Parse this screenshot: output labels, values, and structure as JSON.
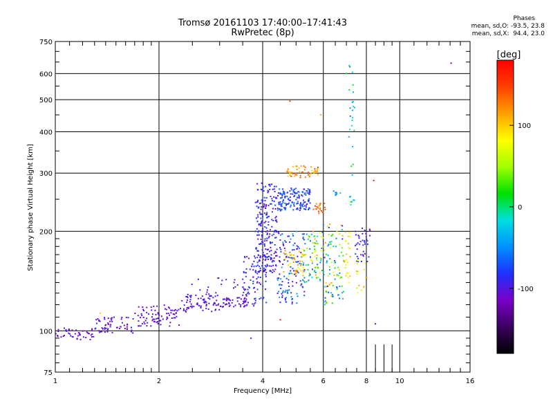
{
  "chart_data": {
    "type": "scatter",
    "title": "Tromsø 20161103 17:40:00–17:41:43",
    "subtitle": "RwPretec (8p)",
    "xlabel": "Frequency [MHz]",
    "ylabel": "Stationary phase Virtual Height [km]",
    "xscale": "log",
    "yscale": "log",
    "xlim": [
      1,
      16
    ],
    "ylim": [
      75,
      750
    ],
    "xticks": [
      1,
      2,
      4,
      6,
      8,
      10,
      16
    ],
    "yticks": [
      75,
      100,
      200,
      300,
      400,
      500,
      600,
      750
    ],
    "grid": true,
    "colorbar": {
      "label": "[deg]",
      "range": [
        -180,
        180
      ],
      "ticks": [
        100,
        0,
        -100
      ],
      "colors": [
        "#000000",
        "#3a0060",
        "#7a00c8",
        "#2030ff",
        "#0090ff",
        "#00e0e0",
        "#00e000",
        "#a0ff00",
        "#ffff00",
        "#ffa000",
        "#ff4000",
        "#ff0000"
      ]
    },
    "phases": {
      "header": "Phases",
      "o_line": "mean, sd,O: -93.5, 23.8",
      "x_line": "mean, sd,X:  94.4, 23.0"
    },
    "clusters": [
      {
        "x": [
          1.0,
          1.3
        ],
        "y": [
          94,
          102
        ],
        "n": 45,
        "phase": [
          -120,
          -90
        ]
      },
      {
        "x": [
          1.3,
          1.7
        ],
        "y": [
          98,
          110
        ],
        "n": 60,
        "phase": [
          -120,
          -90
        ]
      },
      {
        "x": [
          1.7,
          2.3
        ],
        "y": [
          103,
          120
        ],
        "n": 80,
        "phase": [
          -115,
          -90
        ]
      },
      {
        "x": [
          2.3,
          3.0
        ],
        "y": [
          114,
          130
        ],
        "n": 70,
        "phase": [
          -110,
          -90
        ]
      },
      {
        "x": [
          3.0,
          3.6
        ],
        "y": [
          118,
          126
        ],
        "n": 50,
        "phase": [
          -110,
          -95
        ]
      },
      {
        "x": [
          2.4,
          3.6
        ],
        "y": [
          125,
          145
        ],
        "n": 25,
        "phase": [
          -110,
          -90
        ]
      },
      {
        "x": [
          3.5,
          4.1
        ],
        "y": [
          118,
          170
        ],
        "n": 90,
        "phase": [
          -110,
          -70
        ]
      },
      {
        "x": [
          3.8,
          4.4
        ],
        "y": [
          150,
          280
        ],
        "n": 230,
        "phase": [
          -110,
          -70
        ]
      },
      {
        "x": [
          4.4,
          5.3
        ],
        "y": [
          120,
          200
        ],
        "n": 130,
        "phase": [
          -110,
          -40
        ]
      },
      {
        "x": [
          4.4,
          5.5
        ],
        "y": [
          230,
          270
        ],
        "n": 150,
        "phase": [
          -100,
          -50
        ]
      },
      {
        "x": [
          4.7,
          5.8
        ],
        "y": [
          290,
          315
        ],
        "n": 50,
        "phase": [
          90,
          150
        ]
      },
      {
        "x": [
          4.6,
          5.3
        ],
        "y": [
          145,
          175
        ],
        "n": 40,
        "phase": [
          80,
          130
        ]
      },
      {
        "x": [
          5.2,
          6.0
        ],
        "y": [
          140,
          200
        ],
        "n": 90,
        "phase": [
          -80,
          120
        ]
      },
      {
        "x": [
          5.6,
          6.1
        ],
        "y": [
          225,
          245
        ],
        "n": 20,
        "phase": [
          110,
          150
        ]
      },
      {
        "x": [
          6.0,
          6.9
        ],
        "y": [
          120,
          210
        ],
        "n": 100,
        "phase": [
          -100,
          120
        ]
      },
      {
        "x": [
          6.4,
          6.8
        ],
        "y": [
          255,
          265
        ],
        "n": 8,
        "phase": [
          -70,
          -20
        ]
      },
      {
        "x": [
          6.9,
          7.2
        ],
        "y": [
          140,
          200
        ],
        "n": 25,
        "phase": [
          70,
          120
        ]
      },
      {
        "x": [
          7.1,
          7.4
        ],
        "y": [
          230,
          640
        ],
        "n": 30,
        "phase": [
          -60,
          10
        ]
      },
      {
        "x": [
          7.4,
          8.2
        ],
        "y": [
          160,
          205
        ],
        "n": 40,
        "phase": [
          -110,
          -70
        ]
      },
      {
        "x": [
          7.5,
          8.0
        ],
        "y": [
          130,
          165
        ],
        "n": 15,
        "phase": [
          60,
          120
        ]
      }
    ],
    "points": [
      {
        "x": 14.1,
        "y": 645,
        "phase": -120
      },
      {
        "x": 4.8,
        "y": 495,
        "phase": 150
      },
      {
        "x": 5.9,
        "y": 450,
        "phase": 110
      },
      {
        "x": 8.4,
        "y": 285,
        "phase": 170
      },
      {
        "x": 8.5,
        "y": 105,
        "phase": -100
      },
      {
        "x": 3.7,
        "y": 95,
        "phase": -100
      },
      {
        "x": 4.5,
        "y": 108,
        "phase": 170
      },
      {
        "x": 7.0,
        "y": 600,
        "phase": 10
      },
      {
        "x": 1.35,
        "y": 113,
        "phase": 100
      }
    ]
  }
}
